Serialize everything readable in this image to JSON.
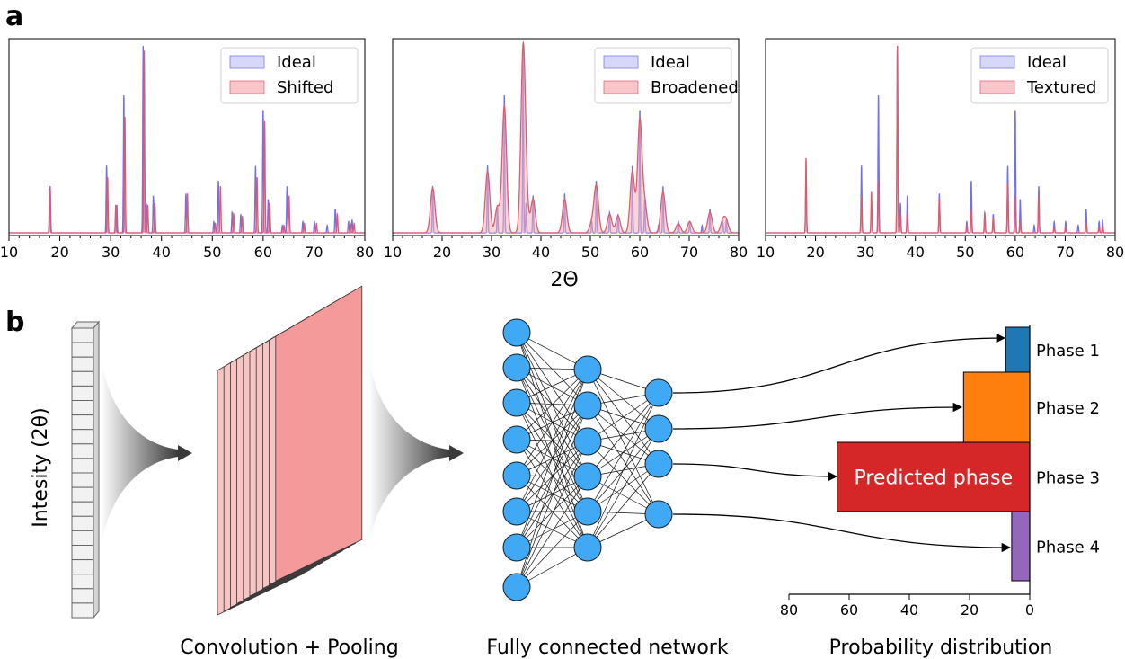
{
  "figure": {
    "panel_a_label": "a",
    "panel_b_label": "b",
    "xaxis_title": "2Θ"
  },
  "chart_data": [
    {
      "type": "line",
      "x_range": [
        10,
        80
      ],
      "x_ticks": [
        "10",
        "20",
        "30",
        "40",
        "50",
        "60",
        "70",
        "80"
      ],
      "legend_placement": "top-right",
      "series": [
        {
          "name": "Ideal",
          "color": "#6f6ff0",
          "fill": "#c9c9f7",
          "sigma": 0.09,
          "peaks": [
            [
              18.1,
              0.25
            ],
            [
              29.2,
              0.36
            ],
            [
              31.2,
              0.15
            ],
            [
              32.6,
              0.74
            ],
            [
              36.4,
              1.0
            ],
            [
              37.0,
              0.16
            ],
            [
              38.4,
              0.2
            ],
            [
              44.8,
              0.21
            ],
            [
              50.3,
              0.06
            ],
            [
              51.2,
              0.28
            ],
            [
              53.9,
              0.11
            ],
            [
              55.6,
              0.1
            ],
            [
              58.5,
              0.36
            ],
            [
              60.0,
              0.66
            ],
            [
              61.0,
              0.18
            ],
            [
              63.8,
              0.04
            ],
            [
              64.7,
              0.25
            ],
            [
              67.8,
              0.06
            ],
            [
              70.1,
              0.06
            ],
            [
              72.6,
              0.04
            ],
            [
              74.2,
              0.13
            ],
            [
              76.8,
              0.06
            ],
            [
              77.5,
              0.07
            ]
          ]
        },
        {
          "name": "Shifted",
          "color": "#e05a6a",
          "fill": "#f6b3b8",
          "sigma": 0.09,
          "peaks": [
            [
              18.0,
              0.24
            ],
            [
              29.4,
              0.3
            ],
            [
              31.0,
              0.15
            ],
            [
              32.8,
              0.62
            ],
            [
              36.6,
              0.98
            ],
            [
              37.3,
              0.15
            ],
            [
              38.7,
              0.16
            ],
            [
              45.1,
              0.21
            ],
            [
              50.6,
              0.05
            ],
            [
              51.6,
              0.25
            ],
            [
              54.2,
              0.1
            ],
            [
              55.9,
              0.09
            ],
            [
              58.8,
              0.3
            ],
            [
              60.3,
              0.6
            ],
            [
              61.3,
              0.16
            ],
            [
              64.1,
              0.04
            ],
            [
              65.1,
              0.2
            ],
            [
              68.1,
              0.05
            ],
            [
              70.5,
              0.05
            ],
            [
              74.6,
              0.1
            ],
            [
              77.2,
              0.05
            ],
            [
              77.9,
              0.05
            ]
          ]
        }
      ]
    },
    {
      "type": "line",
      "x_range": [
        10,
        80
      ],
      "x_ticks": [
        "10",
        "20",
        "30",
        "40",
        "50",
        "60",
        "70",
        "80"
      ],
      "legend_placement": "top-right",
      "series": [
        {
          "name": "Ideal",
          "color": "#6f6ff0",
          "fill": "#c9c9f7",
          "sigma": 0.09,
          "peaks": [
            [
              18.1,
              0.25
            ],
            [
              29.2,
              0.36
            ],
            [
              31.2,
              0.15
            ],
            [
              32.6,
              0.74
            ],
            [
              36.4,
              1.0
            ],
            [
              37.0,
              0.16
            ],
            [
              38.4,
              0.2
            ],
            [
              44.8,
              0.21
            ],
            [
              50.3,
              0.06
            ],
            [
              51.2,
              0.28
            ],
            [
              53.9,
              0.11
            ],
            [
              55.6,
              0.1
            ],
            [
              58.5,
              0.36
            ],
            [
              60.0,
              0.66
            ],
            [
              61.0,
              0.18
            ],
            [
              63.8,
              0.04
            ],
            [
              64.7,
              0.25
            ],
            [
              67.8,
              0.06
            ],
            [
              70.1,
              0.06
            ],
            [
              72.6,
              0.04
            ],
            [
              74.2,
              0.13
            ],
            [
              76.8,
              0.06
            ],
            [
              77.5,
              0.07
            ]
          ]
        },
        {
          "name": "Broadened",
          "color": "#e05a6a",
          "fill": "#f6b3b8",
          "sigma": 0.45,
          "peaks": [
            [
              18.1,
              0.24
            ],
            [
              29.2,
              0.33
            ],
            [
              31.2,
              0.14
            ],
            [
              32.6,
              0.68
            ],
            [
              36.4,
              0.96
            ],
            [
              37.0,
              0.13
            ],
            [
              38.4,
              0.18
            ],
            [
              44.8,
              0.18
            ],
            [
              50.3,
              0.05
            ],
            [
              51.2,
              0.25
            ],
            [
              53.9,
              0.1
            ],
            [
              55.6,
              0.09
            ],
            [
              58.5,
              0.33
            ],
            [
              60.0,
              0.6
            ],
            [
              61.0,
              0.15
            ],
            [
              64.7,
              0.22
            ],
            [
              67.8,
              0.05
            ],
            [
              70.1,
              0.06
            ],
            [
              74.2,
              0.11
            ],
            [
              76.8,
              0.06
            ],
            [
              77.5,
              0.06
            ]
          ]
        }
      ]
    },
    {
      "type": "line",
      "x_range": [
        10,
        80
      ],
      "x_ticks": [
        "10",
        "20",
        "30",
        "40",
        "50",
        "60",
        "70",
        "80"
      ],
      "legend_placement": "top-right",
      "series": [
        {
          "name": "Ideal",
          "color": "#6f6ff0",
          "fill": "#c9c9f7",
          "sigma": 0.09,
          "peaks": [
            [
              18.1,
              0.25
            ],
            [
              29.2,
              0.36
            ],
            [
              31.2,
              0.15
            ],
            [
              32.6,
              0.74
            ],
            [
              36.4,
              1.0
            ],
            [
              37.0,
              0.16
            ],
            [
              38.4,
              0.2
            ],
            [
              44.8,
              0.21
            ],
            [
              50.3,
              0.06
            ],
            [
              51.2,
              0.28
            ],
            [
              53.9,
              0.11
            ],
            [
              55.6,
              0.1
            ],
            [
              58.5,
              0.36
            ],
            [
              60.0,
              0.66
            ],
            [
              61.0,
              0.18
            ],
            [
              63.8,
              0.04
            ],
            [
              64.7,
              0.25
            ],
            [
              67.8,
              0.06
            ],
            [
              70.1,
              0.06
            ],
            [
              72.6,
              0.04
            ],
            [
              74.2,
              0.13
            ],
            [
              76.8,
              0.06
            ],
            [
              77.5,
              0.07
            ]
          ]
        },
        {
          "name": "Textured",
          "color": "#e05a6a",
          "fill": "#f6b3b8",
          "sigma": 0.09,
          "peaks": [
            [
              18.1,
              0.4
            ],
            [
              29.2,
              0.2
            ],
            [
              31.2,
              0.22
            ],
            [
              32.6,
              0.28
            ],
            [
              36.4,
              1.0
            ],
            [
              37.0,
              0.1
            ],
            [
              38.4,
              0.1
            ],
            [
              44.8,
              0.18
            ],
            [
              50.3,
              0.04
            ],
            [
              51.2,
              0.12
            ],
            [
              53.9,
              0.1
            ],
            [
              55.6,
              0.08
            ],
            [
              58.5,
              0.27
            ],
            [
              60.0,
              0.2
            ],
            [
              61.0,
              0.06
            ],
            [
              64.7,
              0.2
            ],
            [
              67.8,
              0.03
            ],
            [
              70.1,
              0.03
            ],
            [
              74.2,
              0.06
            ],
            [
              76.8,
              0.03
            ],
            [
              77.5,
              0.04
            ]
          ]
        }
      ]
    },
    {
      "type": "bar",
      "orientation": "horizontal",
      "categories": [
        "Phase 1",
        "Phase 2",
        "Phase 3",
        "Phase 4"
      ],
      "values": [
        8,
        22,
        64,
        6
      ],
      "colors": [
        "#1f77b4",
        "#ff7f0e",
        "#d62728",
        "#9467bd"
      ],
      "x_range": [
        80,
        0
      ],
      "x_ticks": [
        "80",
        "60",
        "40",
        "20",
        "0"
      ],
      "bar_annotation": {
        "category": "Phase 3",
        "text": "Predicted phase"
      }
    }
  ],
  "diagram": {
    "input_label": "Intesity (2θ)",
    "captions": [
      "Convolution + Pooling",
      "Fully connected network",
      "Probability distribution"
    ],
    "network_layers": [
      8,
      6,
      4
    ],
    "node_color": "#3fa9f5",
    "feature_map_color": "#f4a0a0"
  }
}
